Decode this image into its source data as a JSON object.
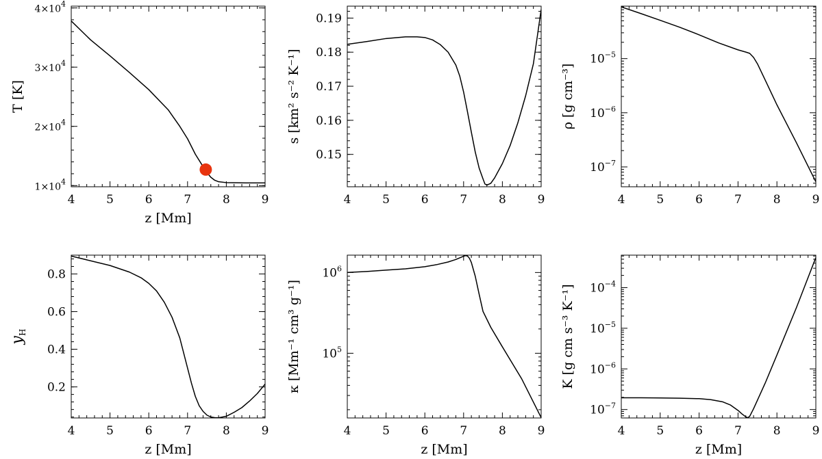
{
  "chart_data": [
    {
      "type": "line",
      "id": "T",
      "xlabel": "z [Mm]",
      "ylabel": "T [K]",
      "xlim": [
        4,
        9
      ],
      "ylim": [
        9800,
        40300
      ],
      "yscale": "linear",
      "xticks": [
        4,
        5,
        6,
        7,
        8,
        9
      ],
      "yticks": [
        {
          "value": 10000,
          "mant": "1×10",
          "exp": "4"
        },
        {
          "value": 20000,
          "mant": "2×10",
          "exp": "4"
        },
        {
          "value": 30000,
          "mant": "3×10",
          "exp": "4"
        },
        {
          "value": 40000,
          "mant": "4×10",
          "exp": "4"
        }
      ],
      "x": [
        4.0,
        4.5,
        5.0,
        5.5,
        6.0,
        6.5,
        6.8,
        7.0,
        7.2,
        7.4,
        7.5,
        7.6,
        7.7,
        7.8,
        8.0,
        8.5,
        9.0
      ],
      "y": [
        37800,
        34600,
        31900,
        29100,
        26200,
        22800,
        20000,
        17900,
        15300,
        13200,
        12200,
        11400,
        10900,
        10650,
        10500,
        10450,
        10450
      ],
      "marker": {
        "x": 7.47,
        "y": 12700,
        "color": "#e8340f"
      }
    },
    {
      "type": "line",
      "id": "s",
      "xlabel": "",
      "ylabel": "s [km² s⁻² K⁻¹]",
      "xlim": [
        4,
        9
      ],
      "ylim": [
        0.1405,
        0.1935
      ],
      "yscale": "linear",
      "xticks": [
        4,
        5,
        6,
        7,
        8,
        9
      ],
      "yticks": [
        {
          "value": 0.15,
          "mant": "0.15",
          "exp": ""
        },
        {
          "value": 0.16,
          "mant": "0.16",
          "exp": ""
        },
        {
          "value": 0.17,
          "mant": "0.17",
          "exp": ""
        },
        {
          "value": 0.18,
          "mant": "0.18",
          "exp": ""
        },
        {
          "value": 0.19,
          "mant": "0.19",
          "exp": ""
        }
      ],
      "x": [
        4.0,
        4.5,
        5.0,
        5.5,
        5.8,
        6.0,
        6.2,
        6.4,
        6.6,
        6.8,
        6.9,
        7.0,
        7.1,
        7.2,
        7.3,
        7.4,
        7.5,
        7.55,
        7.6,
        7.7,
        7.8,
        8.0,
        8.2,
        8.4,
        8.6,
        8.8,
        9.0
      ],
      "y": [
        0.1823,
        0.1831,
        0.184,
        0.1845,
        0.1845,
        0.1843,
        0.1836,
        0.1822,
        0.18,
        0.1762,
        0.173,
        0.1683,
        0.1625,
        0.1565,
        0.1507,
        0.146,
        0.1428,
        0.1413,
        0.141,
        0.1415,
        0.1431,
        0.1473,
        0.1526,
        0.1593,
        0.1672,
        0.1766,
        0.1925
      ]
    },
    {
      "type": "line",
      "id": "rho",
      "xlabel": "",
      "ylabel": "ρ [g cm⁻³]",
      "xlim": [
        4,
        9
      ],
      "ylim": [
        4.3e-08,
        9.3e-05
      ],
      "yscale": "log",
      "xticks": [
        4,
        5,
        6,
        7,
        8,
        9
      ],
      "yticks": [
        {
          "value": 1e-07,
          "mant": "10",
          "exp": "−7"
        },
        {
          "value": 1e-06,
          "mant": "10",
          "exp": "−6"
        },
        {
          "value": 1e-05,
          "mant": "10",
          "exp": "−5"
        }
      ],
      "x": [
        4.0,
        4.5,
        5.0,
        5.5,
        6.0,
        6.5,
        7.0,
        7.2,
        7.3,
        7.4,
        7.5,
        7.7,
        8.0,
        8.5,
        9.0
      ],
      "y": [
        9e-05,
        6.8e-05,
        5.1e-05,
        3.8e-05,
        2.75e-05,
        1.95e-05,
        1.45e-05,
        1.32e-05,
        1.25e-05,
        1.05e-05,
        8e-06,
        4e-06,
        1.4e-06,
        2.8e-07,
        5.3e-08
      ]
    },
    {
      "type": "line",
      "id": "yH",
      "xlabel": "z [Mm]",
      "ylabel": "y",
      "ylabel_sub": "H",
      "xlim": [
        4,
        9
      ],
      "ylim": [
        0.035,
        0.9
      ],
      "yscale": "linear",
      "xticks": [
        4,
        5,
        6,
        7,
        8,
        9
      ],
      "yticks": [
        {
          "value": 0.2,
          "mant": "0.2",
          "exp": ""
        },
        {
          "value": 0.4,
          "mant": "0.4",
          "exp": ""
        },
        {
          "value": 0.6,
          "mant": "0.6",
          "exp": ""
        },
        {
          "value": 0.8,
          "mant": "0.8",
          "exp": ""
        }
      ],
      "x": [
        4.0,
        4.5,
        5.0,
        5.5,
        5.8,
        6.0,
        6.2,
        6.4,
        6.6,
        6.8,
        6.9,
        7.0,
        7.1,
        7.2,
        7.3,
        7.4,
        7.5,
        7.6,
        7.7,
        7.8,
        8.0,
        8.2,
        8.4,
        8.6,
        8.8,
        9.0
      ],
      "y": [
        0.895,
        0.87,
        0.845,
        0.81,
        0.78,
        0.75,
        0.71,
        0.65,
        0.57,
        0.46,
        0.38,
        0.3,
        0.22,
        0.15,
        0.1,
        0.07,
        0.05,
        0.04,
        0.037,
        0.036,
        0.044,
        0.065,
        0.09,
        0.125,
        0.165,
        0.215
      ]
    },
    {
      "type": "line",
      "id": "kappa",
      "xlabel": "z [Mm]",
      "ylabel": "κ [Mm⁻¹ cm³ g⁻¹]",
      "xlim": [
        4,
        9
      ],
      "ylim": [
        15800,
        1640000
      ],
      "yscale": "log",
      "xticks": [
        4,
        5,
        6,
        7,
        8,
        9
      ],
      "yticks": [
        {
          "value": 100000,
          "mant": "10",
          "exp": "5"
        },
        {
          "value": 1000000,
          "mant": "10",
          "exp": "6"
        }
      ],
      "x": [
        4.0,
        4.5,
        5.0,
        5.5,
        6.0,
        6.3,
        6.6,
        6.8,
        6.9,
        7.0,
        7.05,
        7.1,
        7.15,
        7.2,
        7.3,
        7.4,
        7.5,
        7.7,
        8.0,
        8.5,
        9.0
      ],
      "y": [
        1000000,
        1030000,
        1070000,
        1110000,
        1180000,
        1250000,
        1350000,
        1450000,
        1520000,
        1590000,
        1620000,
        1600000,
        1500000,
        1330000,
        900000,
        540000,
        330000,
        210000,
        120000,
        48000,
        16000
      ]
    },
    {
      "type": "line",
      "id": "K",
      "xlabel": "z [Mm]",
      "ylabel": "K [g cm s⁻³ K⁻¹]",
      "xlim": [
        4,
        9
      ],
      "ylim": [
        6.2e-08,
        0.00063
      ],
      "yscale": "log",
      "xticks": [
        4,
        5,
        6,
        7,
        8,
        9
      ],
      "yticks": [
        {
          "value": 1e-07,
          "mant": "10",
          "exp": "−7"
        },
        {
          "value": 1e-06,
          "mant": "10",
          "exp": "−6"
        },
        {
          "value": 1e-05,
          "mant": "10",
          "exp": "−5"
        },
        {
          "value": 0.0001,
          "mant": "10",
          "exp": "−4"
        }
      ],
      "x": [
        4.0,
        4.5,
        5.0,
        5.5,
        6.0,
        6.3,
        6.6,
        6.8,
        7.0,
        7.1,
        7.2,
        7.25,
        7.3,
        7.4,
        7.5,
        7.7,
        8.0,
        8.5,
        9.0
      ],
      "y": [
        1.95e-07,
        1.95e-07,
        1.93e-07,
        1.9e-07,
        1.85e-07,
        1.75e-07,
        1.55e-07,
        1.3e-07,
        9.5e-08,
        7.8e-08,
        6.6e-08,
        6.3e-08,
        6.8e-08,
        1.05e-07,
        1.7e-07,
        4.5e-07,
        2.2e-06,
        3.2e-05,
        0.00055
      ]
    }
  ]
}
